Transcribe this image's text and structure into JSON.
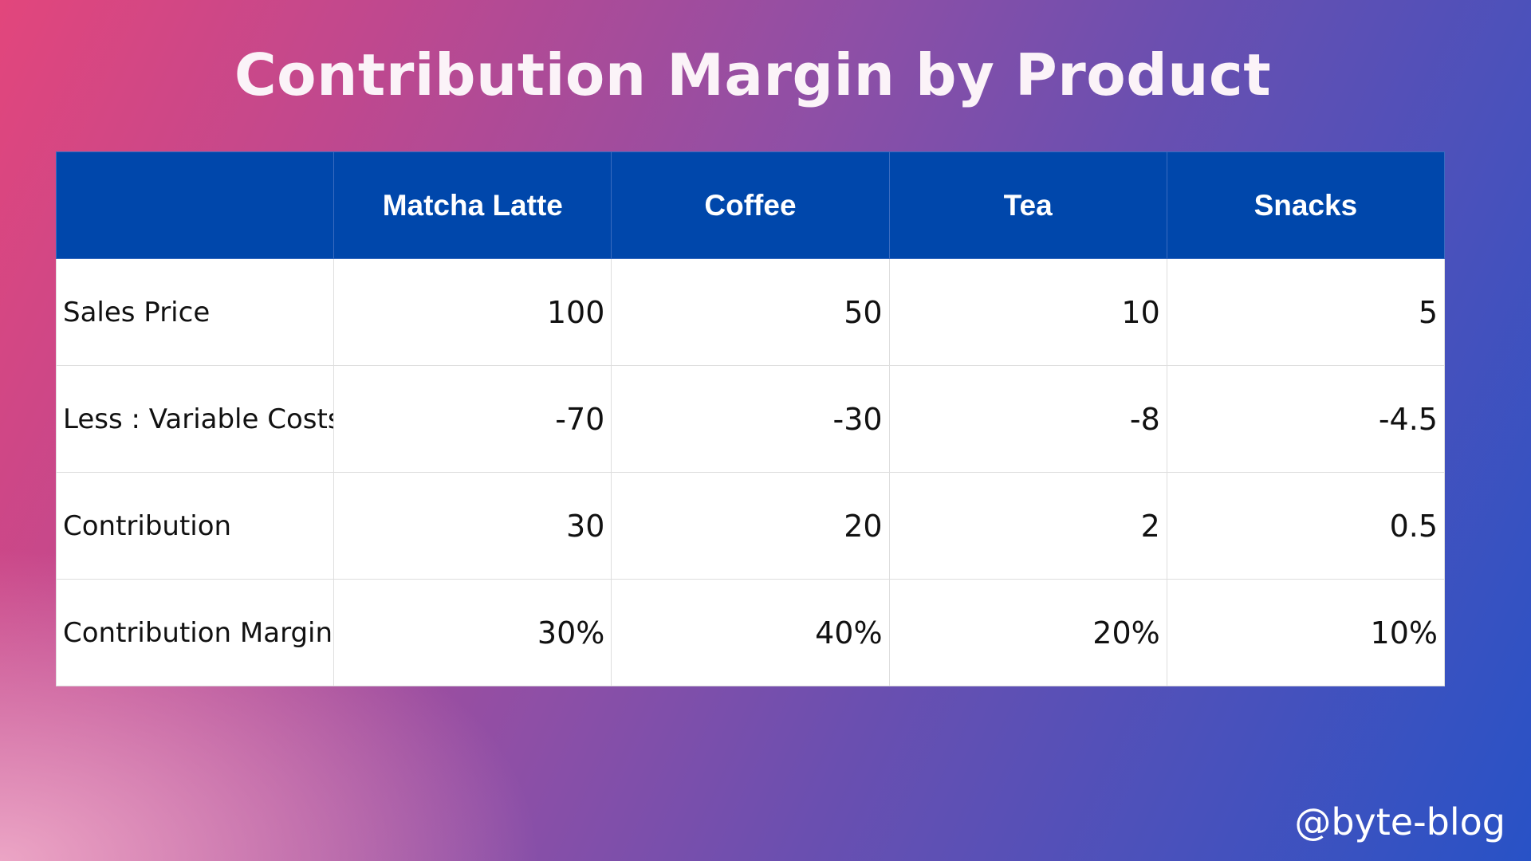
{
  "title": "Contribution Margin by Product",
  "table": {
    "corner": "",
    "columns": [
      "Matcha Latte",
      "Coffee",
      "Tea",
      "Snacks"
    ],
    "rows": [
      {
        "label": "Sales Price",
        "values": [
          "100",
          "50",
          "10",
          "5"
        ]
      },
      {
        "label": "Less : Variable Costs",
        "values": [
          "-70",
          "-30",
          "-8",
          "-4.5"
        ]
      },
      {
        "label": "Contribution",
        "values": [
          "30",
          "20",
          "2",
          "0.5"
        ]
      },
      {
        "label": "Contribution Margin",
        "values": [
          "30%",
          "40%",
          "20%",
          "10%"
        ]
      }
    ]
  },
  "watermark": "@byte-blog",
  "colors": {
    "header_bg": "#0047ab",
    "header_text": "#ffffff",
    "cell_bg": "#ffffff",
    "title_text": "#fbf3f8"
  }
}
